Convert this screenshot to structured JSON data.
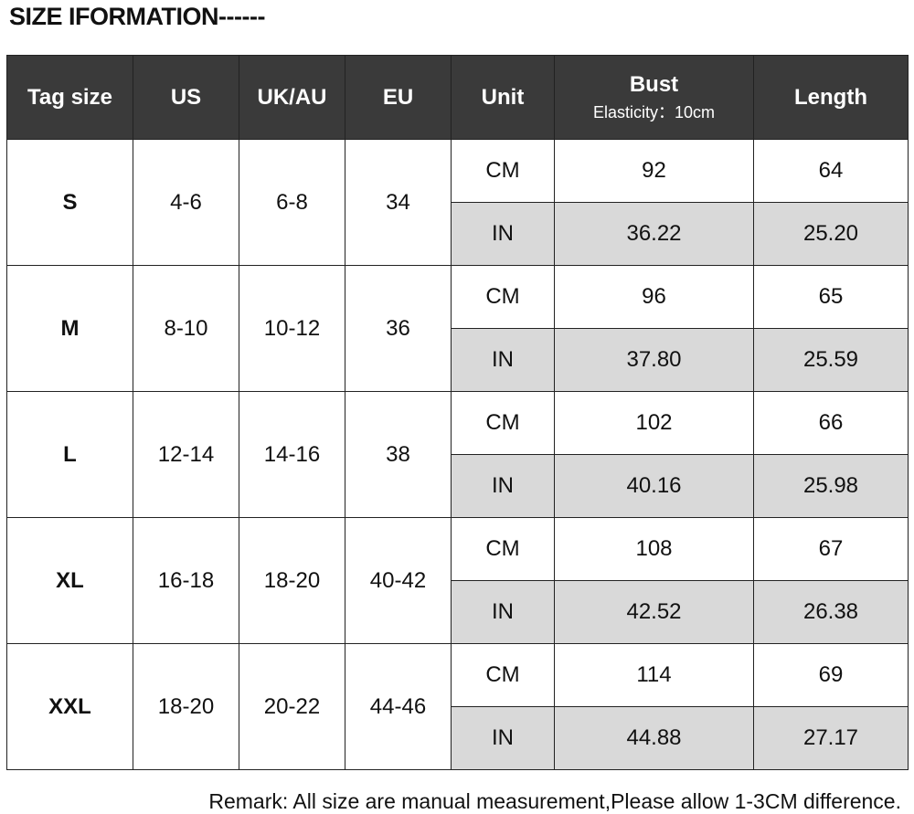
{
  "header": {
    "title": "SIZE IFORMATION------"
  },
  "table": {
    "columns": [
      "Tag size",
      "US",
      "UK/AU",
      "EU",
      "Unit",
      "Bust",
      "Length"
    ],
    "bust_note": "Elasticity：10cm",
    "rows": [
      {
        "tag": "S",
        "us": "4-6",
        "uk": "6-8",
        "eu": "34",
        "units": [
          {
            "unit": "CM",
            "bust": "92",
            "length": "64"
          },
          {
            "unit": "IN",
            "bust": "36.22",
            "length": "25.20"
          }
        ]
      },
      {
        "tag": "M",
        "us": "8-10",
        "uk": "10-12",
        "eu": "36",
        "units": [
          {
            "unit": "CM",
            "bust": "96",
            "length": "65"
          },
          {
            "unit": "IN",
            "bust": "37.80",
            "length": "25.59"
          }
        ]
      },
      {
        "tag": "L",
        "us": "12-14",
        "uk": "14-16",
        "eu": "38",
        "units": [
          {
            "unit": "CM",
            "bust": "102",
            "length": "66"
          },
          {
            "unit": "IN",
            "bust": "40.16",
            "length": "25.98"
          }
        ]
      },
      {
        "tag": "XL",
        "us": "16-18",
        "uk": "18-20",
        "eu": "40-42",
        "units": [
          {
            "unit": "CM",
            "bust": "108",
            "length": "67"
          },
          {
            "unit": "IN",
            "bust": "42.52",
            "length": "26.38"
          }
        ]
      },
      {
        "tag": "XXL",
        "us": "18-20",
        "uk": "20-22",
        "eu": "44-46",
        "units": [
          {
            "unit": "CM",
            "bust": "114",
            "length": "69"
          },
          {
            "unit": "IN",
            "bust": "44.88",
            "length": "27.17"
          }
        ]
      }
    ]
  },
  "footer": {
    "remark": "Remark: All size are manual measurement,Please allow 1-3CM difference."
  }
}
